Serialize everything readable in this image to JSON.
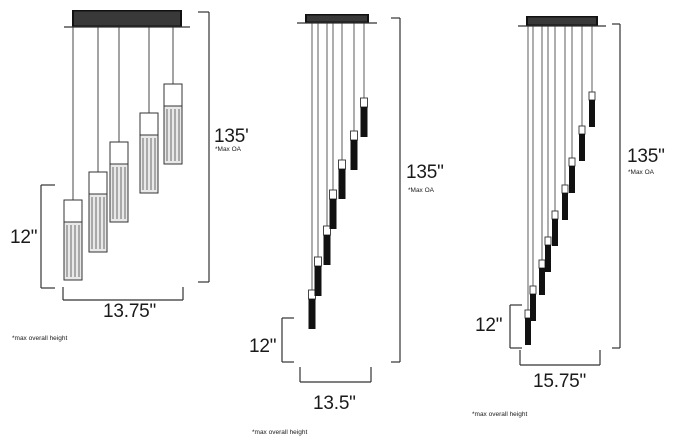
{
  "fixtures": [
    {
      "name": "5-light",
      "height_label": "135'",
      "height_note": "*Max OA",
      "length_label": "12\"",
      "width_label": "13.75\"",
      "footnote": "*max overall height",
      "pendant_count": 5
    },
    {
      "name": "7-light",
      "height_label": "135\"",
      "height_note": "*Max OA",
      "length_label": "12\"",
      "width_label": "13.5\"",
      "footnote": "*max overall height",
      "pendant_count": 7
    },
    {
      "name": "9-light",
      "height_label": "135\"",
      "height_note": "*Max OA",
      "length_label": "12\"",
      "width_label": "15.75\"",
      "footnote": "*max overall height",
      "pendant_count": 9
    }
  ],
  "colors": {
    "line": "#333333",
    "dark": "#111111",
    "glass": "#f4f4f4"
  }
}
